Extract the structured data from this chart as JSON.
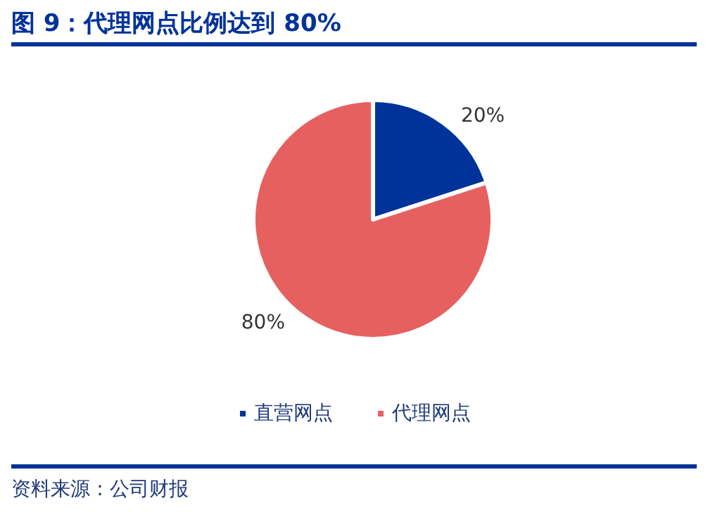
{
  "chart_data": {
    "type": "pie",
    "title": "图 9：代理网点比例达到 80%",
    "categories": [
      "直营网点",
      "代理网点"
    ],
    "values": [
      20,
      80
    ],
    "colors": [
      "#003399",
      "#e66060"
    ],
    "value_labels": [
      "20%",
      "80%"
    ],
    "legend": "bottom",
    "annotations": [
      "资料来源：公司财报"
    ]
  }
}
